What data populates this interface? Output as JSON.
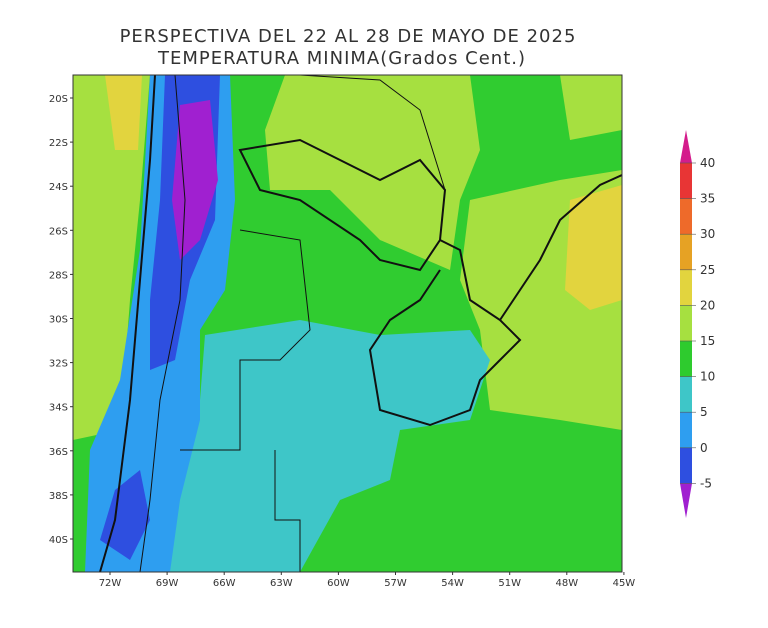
{
  "title": "PERSPECTIVA DEL 22 AL 28 DE MAYO DE 2025",
  "subtitle": "TEMPERATURA MINIMA(Grados Cent.)",
  "map": {
    "lat_labels": [
      "20S",
      "22S",
      "24S",
      "26S",
      "28S",
      "30S",
      "32S",
      "34S",
      "36S",
      "38S",
      "40S"
    ],
    "lon_labels": [
      "72W",
      "69W",
      "66W",
      "63W",
      "60W",
      "57W",
      "54W",
      "51W",
      "48W",
      "45W"
    ]
  },
  "colorbar": {
    "levels": [
      40,
      35,
      30,
      25,
      20,
      15,
      10,
      5,
      0,
      -5
    ],
    "colors": [
      "#d41c8c",
      "#e83535",
      "#ee6a2a",
      "#e6a224",
      "#e2d43e",
      "#a6e040",
      "#2ecb2e",
      "#3ec6c8",
      "#2e9ef0",
      "#2e4fe0",
      "#a020d0"
    ]
  }
}
